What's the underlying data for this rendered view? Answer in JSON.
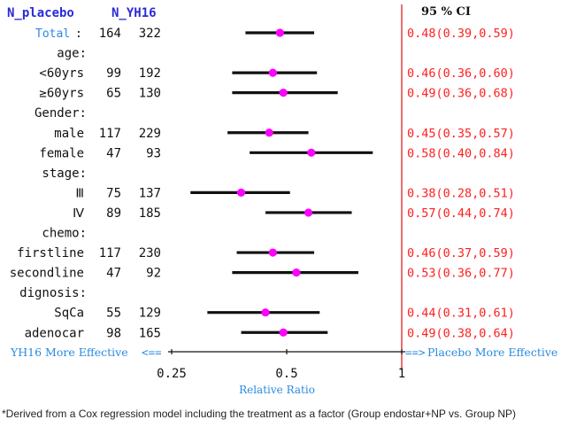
{
  "colors": {
    "header_blue": "#2b2bd6",
    "total_blue": "#2a8ae0",
    "marker": "#ff00ff",
    "ci_red": "#ff2020",
    "ref_line": "#e02020",
    "text": "#111111",
    "axis_blue": "#2a8ae0"
  },
  "chart_data": {
    "type": "forest",
    "header_n": [
      "N_placebo",
      "N_YH16"
    ],
    "ci_header": "95 % CI",
    "rows": [
      {
        "label": "Total",
        "suffix": ":",
        "kind": "total",
        "n1": "164",
        "n2": "322",
        "est": 0.48,
        "lo": 0.39,
        "hi": 0.59,
        "ci_text": "0.48(0.39,0.59)"
      },
      {
        "label": "age:",
        "kind": "group"
      },
      {
        "label": "<60yrs",
        "kind": "sub",
        "n1": "99",
        "n2": "192",
        "est": 0.46,
        "lo": 0.36,
        "hi": 0.6,
        "ci_text": "0.46(0.36,0.60)"
      },
      {
        "label": "≥60yrs",
        "kind": "sub",
        "n1": "65",
        "n2": "130",
        "est": 0.49,
        "lo": 0.36,
        "hi": 0.68,
        "ci_text": "0.49(0.36,0.68)"
      },
      {
        "label": "Gender:",
        "kind": "group"
      },
      {
        "label": "male",
        "kind": "sub",
        "n1": "117",
        "n2": "229",
        "est": 0.45,
        "lo": 0.35,
        "hi": 0.57,
        "ci_text": "0.45(0.35,0.57)"
      },
      {
        "label": "female",
        "kind": "sub",
        "n1": "47",
        "n2": "93",
        "est": 0.58,
        "lo": 0.4,
        "hi": 0.84,
        "ci_text": "0.58(0.40,0.84)"
      },
      {
        "label": "stage:",
        "kind": "group"
      },
      {
        "label": "Ⅲ",
        "kind": "sub",
        "n1": "75",
        "n2": "137",
        "est": 0.38,
        "lo": 0.28,
        "hi": 0.51,
        "ci_text": "0.38(0.28,0.51)"
      },
      {
        "label": "Ⅳ",
        "kind": "sub",
        "n1": "89",
        "n2": "185",
        "est": 0.57,
        "lo": 0.44,
        "hi": 0.74,
        "ci_text": "0.57(0.44,0.74)"
      },
      {
        "label": "chemo:",
        "kind": "group"
      },
      {
        "label": "firstline",
        "kind": "sub",
        "n1": "117",
        "n2": "230",
        "est": 0.46,
        "lo": 0.37,
        "hi": 0.59,
        "ci_text": "0.46(0.37,0.59)"
      },
      {
        "label": "secondline",
        "kind": "sub",
        "n1": "47",
        "n2": "92",
        "est": 0.53,
        "lo": 0.36,
        "hi": 0.77,
        "ci_text": "0.53(0.36,0.77)"
      },
      {
        "label": "dignosis:",
        "kind": "group"
      },
      {
        "label": "SqCa",
        "kind": "sub",
        "n1": "55",
        "n2": "129",
        "est": 0.44,
        "lo": 0.31,
        "hi": 0.61,
        "ci_text": "0.44(0.31,0.61)"
      },
      {
        "label": "adenocar",
        "kind": "sub",
        "n1": "98",
        "n2": "165",
        "est": 0.49,
        "lo": 0.38,
        "hi": 0.64,
        "ci_text": "0.49(0.38,0.64)"
      }
    ],
    "x_scale": "log2",
    "xlim": [
      0.25,
      1
    ],
    "ticks": [
      0.25,
      0.5,
      1
    ],
    "tick_labels": [
      "0.25",
      "0.5",
      "1"
    ],
    "reference_line": 1,
    "xlabel": "Relative Ratio",
    "left_note": "YH16 More Effective",
    "left_arrow": "<==",
    "right_arrow": "==>",
    "right_note": "Placebo More Effective"
  },
  "footnote": "*Derived from a Cox regression model including the  treatment as a factor (Group endostar+NP vs. Group NP)"
}
